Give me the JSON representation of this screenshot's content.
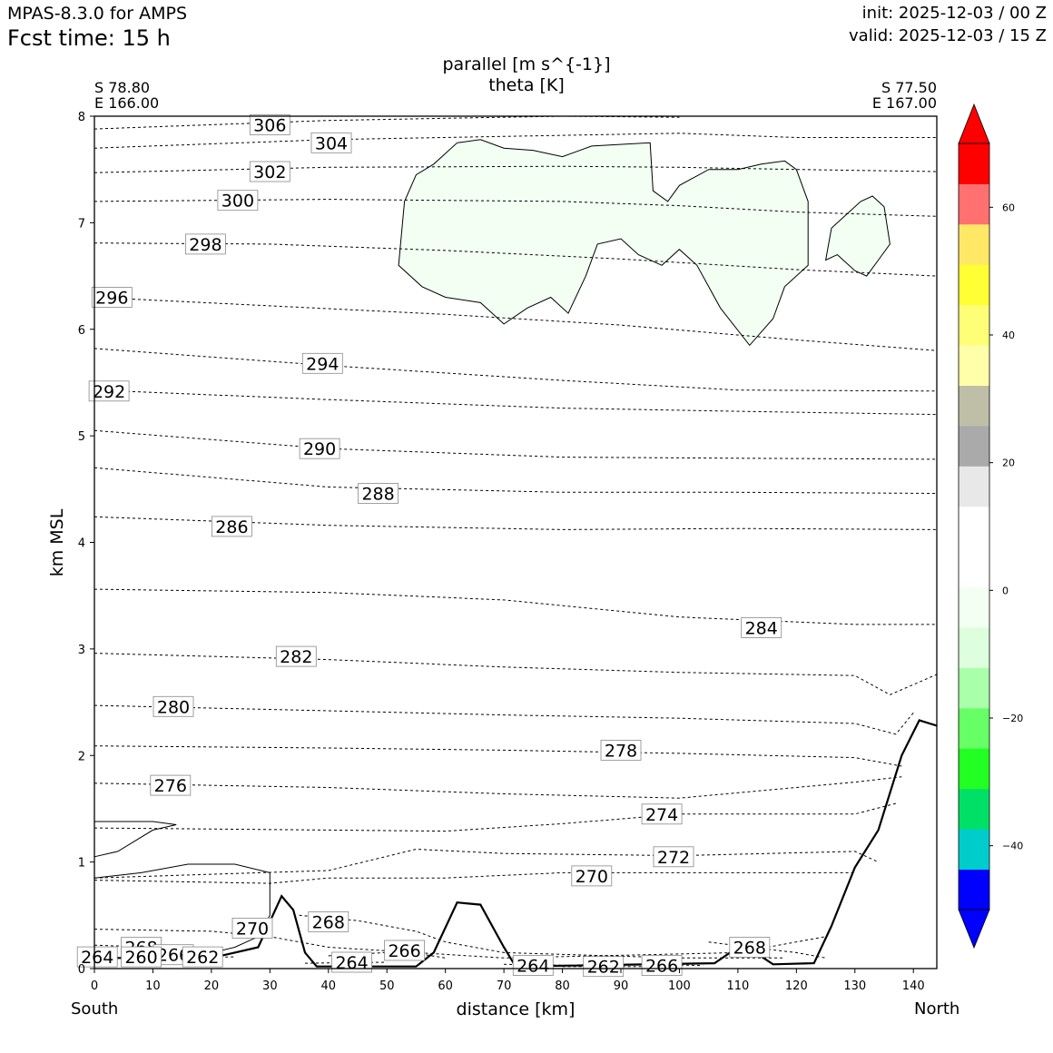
{
  "header": {
    "model": "MPAS-8.3.0 for AMPS",
    "fcst_time": "Fcst time:   15 h",
    "init": "init: 2025-12-03 / 00 Z",
    "valid": "valid: 2025-12-03 / 15 Z"
  },
  "chart_data": {
    "type": "cross-section contour",
    "title_lines": [
      "parallel [m s^{-1}]",
      "theta [K]"
    ],
    "xlabel": "distance [km]",
    "ylabel": "km MSL",
    "xlim": [
      0,
      144
    ],
    "ylim": [
      0,
      8
    ],
    "x_ticks": [
      0,
      10,
      20,
      30,
      40,
      50,
      60,
      70,
      80,
      90,
      100,
      110,
      120,
      130,
      140
    ],
    "y_ticks": [
      0,
      1,
      2,
      3,
      4,
      5,
      6,
      7,
      8
    ],
    "left_end": {
      "lat": "S 78.80",
      "lon": "E 166.00",
      "direction": "South"
    },
    "right_end": {
      "lat": "S 77.50",
      "lon": "E 167.00",
      "direction": "North"
    },
    "theta_contours": [
      {
        "label": "306",
        "label_x": 30,
        "label_y": 7.92,
        "points": [
          [
            0,
            7.88
          ],
          [
            20,
            7.92
          ],
          [
            40,
            7.96
          ],
          [
            60,
            7.98
          ],
          [
            80,
            8.0
          ],
          [
            100,
            7.99
          ]
        ]
      },
      {
        "label": "304",
        "label_x": 40.5,
        "label_y": 7.75,
        "points": [
          [
            0,
            7.7
          ],
          [
            40,
            7.78
          ],
          [
            80,
            7.82
          ],
          [
            100,
            7.84
          ],
          [
            120,
            7.8
          ],
          [
            144,
            7.8
          ]
        ]
      },
      {
        "label": "302",
        "label_x": 30,
        "label_y": 7.48,
        "points": [
          [
            0,
            7.47
          ],
          [
            40,
            7.52
          ],
          [
            80,
            7.53
          ],
          [
            100,
            7.52
          ],
          [
            120,
            7.5
          ],
          [
            144,
            7.48
          ]
        ]
      },
      {
        "label": "300",
        "label_x": 24.5,
        "label_y": 7.21,
        "points": [
          [
            0,
            7.2
          ],
          [
            40,
            7.22
          ],
          [
            80,
            7.2
          ],
          [
            100,
            7.16
          ],
          [
            120,
            7.1
          ],
          [
            144,
            7.06
          ]
        ]
      },
      {
        "label": "298",
        "label_x": 19,
        "label_y": 6.8,
        "points": [
          [
            0,
            6.81
          ],
          [
            30,
            6.8
          ],
          [
            60,
            6.74
          ],
          [
            90,
            6.66
          ],
          [
            120,
            6.56
          ],
          [
            144,
            6.5
          ]
        ]
      },
      {
        "label": "296",
        "label_x": 3,
        "label_y": 6.3,
        "points": [
          [
            0,
            6.3
          ],
          [
            30,
            6.22
          ],
          [
            60,
            6.14
          ],
          [
            90,
            6.04
          ],
          [
            120,
            5.9
          ],
          [
            144,
            5.8
          ]
        ]
      },
      {
        "label": "294",
        "label_x": 39,
        "label_y": 5.68,
        "points": [
          [
            0,
            5.82
          ],
          [
            40,
            5.66
          ],
          [
            80,
            5.52
          ],
          [
            110,
            5.43
          ],
          [
            144,
            5.42
          ]
        ]
      },
      {
        "label": "292",
        "label_x": 2.5,
        "label_y": 5.42,
        "points": [
          [
            0,
            5.43
          ],
          [
            40,
            5.34
          ],
          [
            80,
            5.26
          ],
          [
            110,
            5.23
          ],
          [
            144,
            5.2
          ]
        ]
      },
      {
        "label": "290",
        "label_x": 38.5,
        "label_y": 4.88,
        "points": [
          [
            0,
            5.05
          ],
          [
            40,
            4.88
          ],
          [
            80,
            4.8
          ],
          [
            110,
            4.79
          ],
          [
            144,
            4.78
          ]
        ]
      },
      {
        "label": "288",
        "label_x": 48.5,
        "label_y": 4.46,
        "points": [
          [
            0,
            4.7
          ],
          [
            40,
            4.52
          ],
          [
            80,
            4.47
          ],
          [
            110,
            4.47
          ],
          [
            144,
            4.46
          ]
        ]
      },
      {
        "label": "286",
        "label_x": 23.5,
        "label_y": 4.15,
        "points": [
          [
            0,
            4.24
          ],
          [
            40,
            4.16
          ],
          [
            80,
            4.12
          ],
          [
            110,
            4.13
          ],
          [
            144,
            4.12
          ]
        ]
      },
      {
        "label": "284",
        "label_x": 114,
        "label_y": 3.2,
        "points": [
          [
            0,
            3.56
          ],
          [
            40,
            3.53
          ],
          [
            70,
            3.46
          ],
          [
            100,
            3.3
          ],
          [
            130,
            3.23
          ],
          [
            144,
            3.23
          ]
        ]
      },
      {
        "label": "282",
        "label_x": 34.5,
        "label_y": 2.93,
        "points": [
          [
            0,
            2.96
          ],
          [
            40,
            2.9
          ],
          [
            70,
            2.83
          ],
          [
            100,
            2.78
          ],
          [
            130,
            2.75
          ],
          [
            136,
            2.57
          ],
          [
            144,
            2.76
          ]
        ]
      },
      {
        "label": "280",
        "label_x": 13.5,
        "label_y": 2.46,
        "points": [
          [
            0,
            2.47
          ],
          [
            40,
            2.42
          ],
          [
            70,
            2.38
          ],
          [
            100,
            2.35
          ],
          [
            130,
            2.3
          ],
          [
            137,
            2.2
          ],
          [
            140,
            2.4
          ]
        ]
      },
      {
        "label": "278",
        "label_x": 90,
        "label_y": 2.05,
        "points": [
          [
            0,
            2.09
          ],
          [
            40,
            2.07
          ],
          [
            70,
            2.05
          ],
          [
            100,
            2.02
          ],
          [
            130,
            1.98
          ],
          [
            138,
            1.9
          ]
        ]
      },
      {
        "label": "276",
        "label_x": 13,
        "label_y": 1.72,
        "points": [
          [
            0,
            1.74
          ],
          [
            40,
            1.7
          ],
          [
            70,
            1.64
          ],
          [
            100,
            1.6
          ],
          [
            130,
            1.75
          ],
          [
            138,
            1.8
          ]
        ]
      },
      {
        "label": "274",
        "label_x": 97,
        "label_y": 1.45,
        "points": [
          [
            0,
            1.32
          ],
          [
            40,
            1.3
          ],
          [
            60,
            1.29
          ],
          [
            80,
            1.36
          ],
          [
            100,
            1.45
          ],
          [
            130,
            1.45
          ],
          [
            137,
            1.55
          ]
        ]
      },
      {
        "label": "272",
        "label_x": 99,
        "label_y": 1.05,
        "points": [
          [
            0,
            0.85
          ],
          [
            40,
            0.92
          ],
          [
            55,
            1.12
          ],
          [
            70,
            1.08
          ],
          [
            100,
            1.06
          ],
          [
            130,
            1.1
          ],
          [
            134,
            1.0
          ]
        ]
      },
      {
        "label": "270",
        "label_x": 85,
        "label_y": 0.87,
        "points": [
          [
            0,
            0.83
          ],
          [
            30,
            0.8
          ],
          [
            40,
            0.85
          ],
          [
            60,
            0.85
          ],
          [
            80,
            0.9
          ],
          [
            100,
            0.9
          ],
          [
            130,
            0.9
          ]
        ]
      },
      {
        "label": "270",
        "label_x": 27,
        "label_y": 0.38,
        "points": [
          [
            0,
            0.37
          ],
          [
            20,
            0.35
          ],
          [
            30,
            0.3
          ],
          [
            40,
            0.2
          ],
          [
            55,
            0.15
          ],
          [
            70,
            0.1
          ],
          [
            110,
            0.15
          ],
          [
            125,
            0.3
          ]
        ]
      },
      {
        "label": "268",
        "label_x": 40,
        "label_y": 0.44,
        "points": [
          [
            35,
            0.5
          ],
          [
            45,
            0.45
          ],
          [
            55,
            0.35
          ],
          [
            60,
            0.25
          ],
          [
            70,
            0.15
          ],
          [
            100,
            0.1
          ],
          [
            118,
            0.1
          ]
        ]
      },
      {
        "label": "268",
        "label_x": 112,
        "label_y": 0.2,
        "points": [
          [
            105,
            0.25
          ],
          [
            112,
            0.2
          ],
          [
            120,
            0.15
          ],
          [
            125,
            0.1
          ]
        ]
      },
      {
        "label": "268",
        "label_x": 8,
        "label_y": 0.2,
        "points": [
          [
            0,
            0.22
          ],
          [
            10,
            0.2
          ],
          [
            18,
            0.16
          ]
        ]
      },
      {
        "label": "266",
        "label_x": 13.5,
        "label_y": 0.13,
        "points": [
          [
            8,
            0.14
          ],
          [
            20,
            0.13
          ]
        ]
      },
      {
        "label": "266",
        "label_x": 53,
        "label_y": 0.17,
        "points": [
          [
            40,
            0.12
          ],
          [
            53,
            0.16
          ],
          [
            60,
            0.1
          ]
        ]
      },
      {
        "label": "266",
        "label_x": 97,
        "label_y": 0.03,
        "points": [
          [
            90,
            0.04
          ],
          [
            104,
            0.03
          ]
        ]
      },
      {
        "label": "264",
        "label_x": 44,
        "label_y": 0.06,
        "points": [
          [
            36,
            0.05
          ],
          [
            50,
            0.06
          ]
        ]
      },
      {
        "label": "264",
        "label_x": 75,
        "label_y": 0.03,
        "points": [
          [
            70,
            0.04
          ],
          [
            82,
            0.03
          ]
        ]
      },
      {
        "label": "264",
        "label_x": 0.5,
        "label_y": 0.11,
        "points": [
          [
            0,
            0.1
          ],
          [
            5,
            0.1
          ]
        ]
      },
      {
        "label": "262",
        "label_x": 18.5,
        "label_y": 0.11,
        "points": [
          [
            14,
            0.1
          ],
          [
            24,
            0.11
          ]
        ]
      },
      {
        "label": "262",
        "label_x": 87,
        "label_y": 0.02,
        "points": [
          [
            80,
            0.02
          ],
          [
            96,
            0.02
          ]
        ]
      },
      {
        "label": "260",
        "label_x": 8,
        "label_y": 0.11,
        "points": [
          [
            4,
            0.1
          ],
          [
            12,
            0.1
          ]
        ]
      }
    ],
    "terrain_km": [
      [
        0,
        0.1
      ],
      [
        20,
        0.1
      ],
      [
        28,
        0.2
      ],
      [
        32,
        0.68
      ],
      [
        34,
        0.55
      ],
      [
        36,
        0.15
      ],
      [
        38,
        0.02
      ],
      [
        55,
        0.02
      ],
      [
        58,
        0.15
      ],
      [
        62,
        0.62
      ],
      [
        66,
        0.6
      ],
      [
        70,
        0.2
      ],
      [
        72,
        0.02
      ],
      [
        106,
        0.05
      ],
      [
        110,
        0.2
      ],
      [
        113,
        0.15
      ],
      [
        116,
        0.04
      ],
      [
        123,
        0.05
      ],
      [
        126,
        0.4
      ],
      [
        130,
        0.95
      ],
      [
        134,
        1.3
      ],
      [
        138,
        2.0
      ],
      [
        141,
        2.33
      ],
      [
        144,
        2.28
      ]
    ],
    "velocity_colorbar": {
      "ticks": [
        -40,
        -20,
        0,
        20,
        40,
        60
      ],
      "colors_low_to_high": [
        "#0000ff",
        "#00cccc",
        "#00e066",
        "#22ff22",
        "#66ff66",
        "#aaffaa",
        "#ddffdd",
        "#f2fff2",
        "#ffffff",
        "#ffffff",
        "#e8e8e8",
        "#aaaaaa",
        "#bfbfa8",
        "#ffffaa",
        "#ffff77",
        "#ffff33",
        "#ffe866",
        "#ff7070",
        "#ff0000"
      ],
      "extend_low": "#0000ff",
      "extend_high": "#ff0000"
    },
    "shaded_regions": [
      {
        "class": "-10 to -5",
        "color": "#f2fff2",
        "location": "upper level near 52-122 km, 6-7.8 km MSL"
      },
      {
        "class": "-10 to -5",
        "color": "#f2fff2",
        "location": "125-136 km, 6.6-7.3 km MSL"
      }
    ]
  }
}
